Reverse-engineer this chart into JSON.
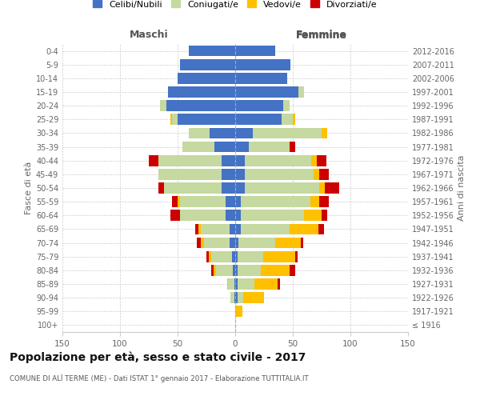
{
  "age_groups": [
    "100+",
    "95-99",
    "90-94",
    "85-89",
    "80-84",
    "75-79",
    "70-74",
    "65-69",
    "60-64",
    "55-59",
    "50-54",
    "45-49",
    "40-44",
    "35-39",
    "30-34",
    "25-29",
    "20-24",
    "15-19",
    "10-14",
    "5-9",
    "0-4"
  ],
  "birth_years": [
    "≤ 1916",
    "1917-1921",
    "1922-1926",
    "1927-1931",
    "1932-1936",
    "1937-1941",
    "1942-1946",
    "1947-1951",
    "1952-1956",
    "1957-1961",
    "1962-1966",
    "1967-1971",
    "1972-1976",
    "1977-1981",
    "1982-1986",
    "1987-1991",
    "1992-1996",
    "1997-2001",
    "2002-2006",
    "2007-2011",
    "2012-2016"
  ],
  "colors": {
    "celibi": "#4472c4",
    "coniugati": "#c5d9a0",
    "vedovi": "#ffc000",
    "divorziati": "#cc0000"
  },
  "maschi": {
    "celibi": [
      0,
      0,
      1,
      1,
      2,
      3,
      5,
      5,
      8,
      8,
      12,
      12,
      12,
      18,
      22,
      50,
      60,
      58,
      50,
      48,
      40
    ],
    "coniugati": [
      0,
      0,
      3,
      5,
      15,
      18,
      22,
      25,
      40,
      40,
      50,
      55,
      55,
      28,
      18,
      5,
      5,
      0,
      0,
      0,
      0
    ],
    "vedovi": [
      0,
      0,
      0,
      1,
      2,
      2,
      3,
      2,
      0,
      2,
      0,
      0,
      0,
      0,
      0,
      1,
      0,
      0,
      0,
      0,
      0
    ],
    "divorziati": [
      0,
      0,
      0,
      0,
      2,
      2,
      3,
      3,
      8,
      5,
      5,
      0,
      8,
      0,
      0,
      0,
      0,
      0,
      0,
      0,
      0
    ]
  },
  "femmine": {
    "nubili": [
      0,
      0,
      2,
      2,
      2,
      2,
      3,
      5,
      5,
      5,
      8,
      8,
      8,
      12,
      15,
      40,
      42,
      55,
      45,
      48,
      35
    ],
    "coniugate": [
      0,
      1,
      5,
      15,
      20,
      22,
      32,
      42,
      55,
      60,
      65,
      60,
      58,
      35,
      60,
      10,
      5,
      5,
      0,
      0,
      0
    ],
    "vedove": [
      0,
      5,
      18,
      20,
      25,
      28,
      22,
      25,
      15,
      8,
      5,
      5,
      5,
      0,
      5,
      2,
      0,
      0,
      0,
      0,
      0
    ],
    "divorziate": [
      0,
      0,
      0,
      2,
      5,
      2,
      2,
      5,
      5,
      8,
      12,
      8,
      8,
      5,
      0,
      0,
      0,
      0,
      0,
      0,
      0
    ]
  },
  "xlim": 150,
  "title": "Popolazione per età, sesso e stato civile - 2017",
  "subtitle": "COMUNE DI ALÌ TERME (ME) - Dati ISTAT 1° gennaio 2017 - Elaborazione TUTTITALIA.IT",
  "ylabel_left": "Fasce di età",
  "ylabel_right": "Anni di nascita",
  "xlabel_maschi": "Maschi",
  "xlabel_femmine": "Femmine",
  "legend_labels": [
    "Celibi/Nubili",
    "Coniugati/e",
    "Vedovi/e",
    "Divorziati/e"
  ],
  "background_color": "#ffffff",
  "bar_height": 0.8
}
